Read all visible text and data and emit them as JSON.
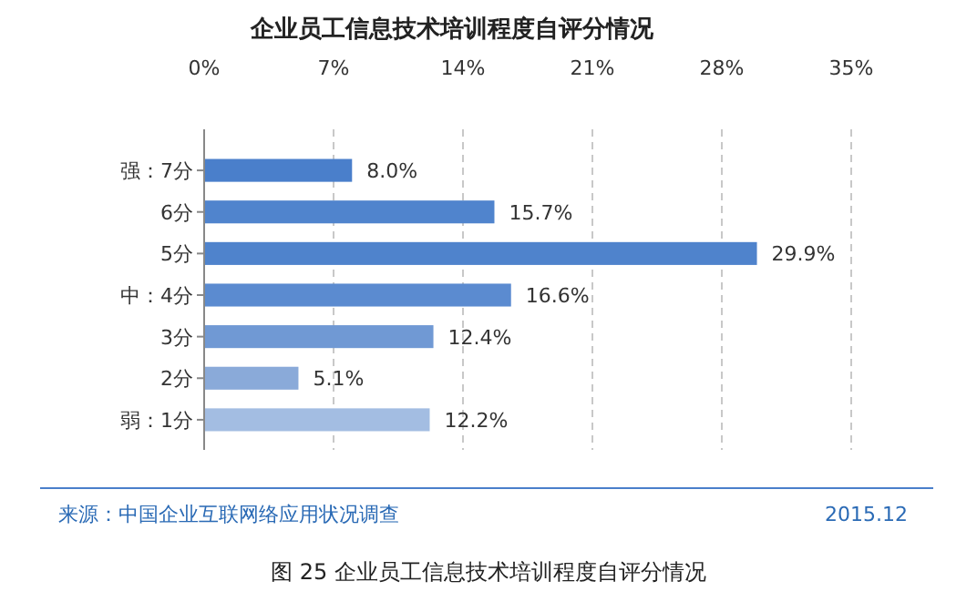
{
  "chart_data": {
    "type": "bar",
    "orientation": "horizontal",
    "title": "企业员工信息技术培训程度自评分情况",
    "categories": [
      "强：7分",
      "6分",
      "5分",
      "中：4分",
      "3分",
      "2分",
      "弱：1分"
    ],
    "values": [
      8.0,
      15.7,
      29.9,
      16.6,
      12.4,
      5.1,
      12.2
    ],
    "value_labels": [
      "8.0%",
      "15.7%",
      "29.9%",
      "16.6%",
      "12.4%",
      "5.1%",
      "12.2%"
    ],
    "colors": [
      "#4a7fcb",
      "#5084cd",
      "#4f83cc",
      "#5b8bd0",
      "#7099d4",
      "#8aaad9",
      "#a3bde2"
    ],
    "xlim": [
      0,
      35
    ],
    "xticks": [
      {
        "value": 0,
        "label": "0%"
      },
      {
        "value": 7,
        "label": "7%"
      },
      {
        "value": 14,
        "label": "14%"
      },
      {
        "value": 21,
        "label": "21%"
      },
      {
        "value": 28,
        "label": "28%"
      },
      {
        "value": 35,
        "label": "35%"
      }
    ],
    "grid": "x",
    "annotations": [
      "来源：中国企业互联网络应用状况调查",
      "2015.12",
      "图 25 企业员工信息技术培训程度自评分情况"
    ]
  }
}
